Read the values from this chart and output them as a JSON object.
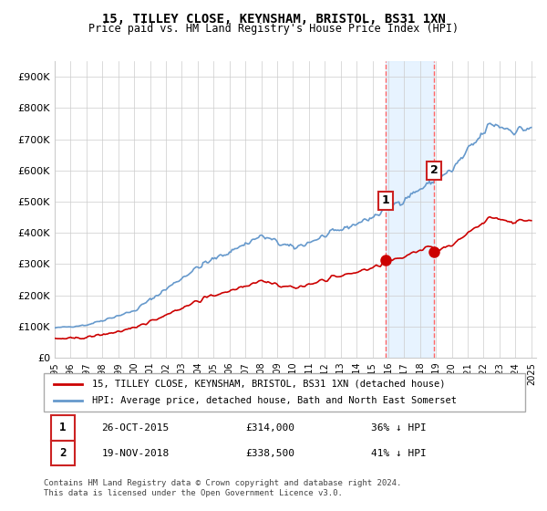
{
  "title": "15, TILLEY CLOSE, KEYNSHAM, BRISTOL, BS31 1XN",
  "subtitle": "Price paid vs. HM Land Registry's House Price Index (HPI)",
  "legend_label_red": "15, TILLEY CLOSE, KEYNSHAM, BRISTOL, BS31 1XN (detached house)",
  "legend_label_blue": "HPI: Average price, detached house, Bath and North East Somerset",
  "annotation1_label": "1",
  "annotation1_date": "26-OCT-2015",
  "annotation1_price": "£314,000",
  "annotation1_pct": "36% ↓ HPI",
  "annotation2_label": "2",
  "annotation2_date": "19-NOV-2018",
  "annotation2_price": "£338,500",
  "annotation2_pct": "41% ↓ HPI",
  "footnote": "Contains HM Land Registry data © Crown copyright and database right 2024.\nThis data is licensed under the Open Government Licence v3.0.",
  "red_color": "#cc0000",
  "blue_color": "#6699cc",
  "marker_color": "#cc0000",
  "shade_color": "#ddeeff",
  "vline_color": "#ff6666",
  "annotation_box_color": "#cc2222",
  "grid_color": "#cccccc",
  "bg_color": "#ffffff",
  "ylabel_values": [
    "£0",
    "£100K",
    "£200K",
    "£300K",
    "£400K",
    "£500K",
    "£600K",
    "£700K",
    "£800K",
    "£900K"
  ],
  "ylim": [
    0,
    950000
  ],
  "xstart_year": 1995,
  "xend_year": 2025,
  "sale1_year": 2015.82,
  "sale2_year": 2018.89,
  "sale1_price": 314000,
  "sale2_price": 338500
}
